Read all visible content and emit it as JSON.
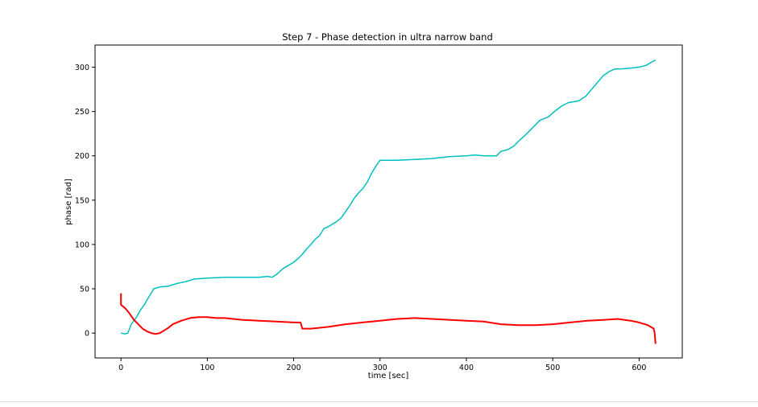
{
  "chart_data": {
    "type": "line",
    "title": "Step 7 - Phase detection in ultra narrow band",
    "xlabel": "time [sec]",
    "ylabel": "phase [rad]",
    "xlim": [
      -30,
      650
    ],
    "ylim": [
      -28,
      325
    ],
    "xticks": [
      0,
      100,
      200,
      300,
      400,
      500,
      600
    ],
    "yticks": [
      0,
      50,
      100,
      150,
      200,
      250,
      300
    ],
    "grid": false,
    "series": [
      {
        "color": "#00bfbf",
        "points": [
          [
            0,
            0
          ],
          [
            5,
            -1
          ],
          [
            8,
            0
          ],
          [
            12,
            10
          ],
          [
            18,
            18
          ],
          [
            22,
            25
          ],
          [
            27,
            32
          ],
          [
            33,
            42
          ],
          [
            38,
            50
          ],
          [
            45,
            52
          ],
          [
            55,
            53
          ],
          [
            65,
            56
          ],
          [
            75,
            58
          ],
          [
            85,
            61
          ],
          [
            100,
            62
          ],
          [
            120,
            63
          ],
          [
            140,
            63
          ],
          [
            160,
            63
          ],
          [
            170,
            64
          ],
          [
            175,
            63
          ],
          [
            180,
            66
          ],
          [
            188,
            73
          ],
          [
            195,
            77
          ],
          [
            200,
            80
          ],
          [
            205,
            84
          ],
          [
            210,
            89
          ],
          [
            215,
            95
          ],
          [
            220,
            100
          ],
          [
            225,
            106
          ],
          [
            230,
            110
          ],
          [
            235,
            118
          ],
          [
            240,
            120
          ],
          [
            245,
            123
          ],
          [
            250,
            126
          ],
          [
            255,
            130
          ],
          [
            260,
            137
          ],
          [
            265,
            144
          ],
          [
            270,
            152
          ],
          [
            275,
            158
          ],
          [
            280,
            163
          ],
          [
            285,
            170
          ],
          [
            290,
            180
          ],
          [
            295,
            188
          ],
          [
            300,
            195
          ],
          [
            320,
            195
          ],
          [
            340,
            196
          ],
          [
            360,
            197
          ],
          [
            380,
            199
          ],
          [
            400,
            200
          ],
          [
            410,
            201
          ],
          [
            420,
            200
          ],
          [
            435,
            200
          ],
          [
            440,
            205
          ],
          [
            448,
            207
          ],
          [
            455,
            211
          ],
          [
            462,
            218
          ],
          [
            470,
            225
          ],
          [
            478,
            233
          ],
          [
            485,
            240
          ],
          [
            495,
            244
          ],
          [
            502,
            250
          ],
          [
            510,
            256
          ],
          [
            518,
            260
          ],
          [
            530,
            262
          ],
          [
            538,
            267
          ],
          [
            545,
            275
          ],
          [
            552,
            283
          ],
          [
            558,
            290
          ],
          [
            565,
            295
          ],
          [
            572,
            298
          ],
          [
            578,
            298
          ],
          [
            590,
            299
          ],
          [
            600,
            300
          ],
          [
            608,
            302
          ],
          [
            615,
            306
          ],
          [
            619,
            308
          ]
        ]
      },
      {
        "color": "#ff0000",
        "points": [
          [
            0,
            45
          ],
          [
            0,
            32
          ],
          [
            5,
            28
          ],
          [
            10,
            22
          ],
          [
            15,
            15
          ],
          [
            20,
            10
          ],
          [
            25,
            5
          ],
          [
            30,
            2
          ],
          [
            35,
            0
          ],
          [
            40,
            -1
          ],
          [
            45,
            0
          ],
          [
            50,
            3
          ],
          [
            55,
            6
          ],
          [
            60,
            10
          ],
          [
            70,
            14
          ],
          [
            80,
            17
          ],
          [
            90,
            18
          ],
          [
            100,
            18
          ],
          [
            110,
            17
          ],
          [
            120,
            17
          ],
          [
            140,
            15
          ],
          [
            160,
            14
          ],
          [
            180,
            13
          ],
          [
            200,
            12
          ],
          [
            208,
            12
          ],
          [
            210,
            5
          ],
          [
            215,
            5
          ],
          [
            220,
            5
          ],
          [
            240,
            7
          ],
          [
            260,
            10
          ],
          [
            280,
            12
          ],
          [
            300,
            14
          ],
          [
            320,
            16
          ],
          [
            340,
            17
          ],
          [
            360,
            16
          ],
          [
            380,
            15
          ],
          [
            400,
            14
          ],
          [
            420,
            13
          ],
          [
            440,
            10
          ],
          [
            460,
            9
          ],
          [
            480,
            9
          ],
          [
            500,
            10
          ],
          [
            520,
            12
          ],
          [
            540,
            14
          ],
          [
            560,
            15
          ],
          [
            575,
            16
          ],
          [
            590,
            14
          ],
          [
            600,
            12
          ],
          [
            610,
            9
          ],
          [
            617,
            5
          ],
          [
            618,
            0
          ],
          [
            619,
            -12
          ]
        ]
      }
    ]
  }
}
